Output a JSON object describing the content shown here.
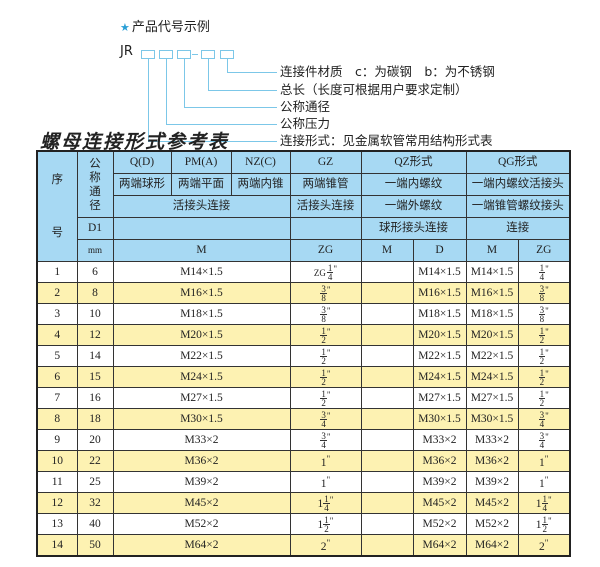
{
  "legend": {
    "title": "产品代号示例",
    "code_prefix": "JR",
    "descriptions": [
      "连接件材质　c：为碳钢　b：为不锈钢",
      "总长（长度可根据用户要求定制）",
      "公称通径",
      "公称压力",
      "连接形式：见金属软管常用结构形式表"
    ]
  },
  "table_title": "螺母连接形式参考表",
  "header": {
    "seq": "序",
    "seq2": "号",
    "nominal": "公称通径",
    "row1": [
      "Q(D)",
      "PM(A)",
      "NZ(C)",
      "GZ",
      "QZ形式",
      "QG形式"
    ],
    "row2": [
      "两端球形",
      "两端平面",
      "两端内锥",
      "两端锥管",
      "一端内螺纹",
      "一端内螺纹活接头"
    ],
    "row3": [
      "活接头连接",
      "活接头连接",
      "一端外螺纹",
      "一端锥管螺纹接头"
    ],
    "row4": [
      "D1",
      "球形接头连接",
      "连接"
    ],
    "row5": [
      "mm",
      "M",
      "ZG",
      "M",
      "D",
      "M",
      "ZG"
    ]
  },
  "rows": [
    {
      "no": "1",
      "d1": "6",
      "m": "M14×1.5",
      "zg": {
        "pre": "ZG",
        "n": "1",
        "d": "4"
      },
      "qz_d": "M14×1.5",
      "qg_m": "M14×1.5",
      "qg_zg": {
        "n": "1",
        "d": "4"
      }
    },
    {
      "no": "2",
      "d1": "8",
      "m": "M16×1.5",
      "zg": {
        "n": "3",
        "d": "8"
      },
      "qz_d": "M16×1.5",
      "qg_m": "M16×1.5",
      "qg_zg": {
        "n": "3",
        "d": "8"
      }
    },
    {
      "no": "3",
      "d1": "10",
      "m": "M18×1.5",
      "zg": {
        "n": "3",
        "d": "8"
      },
      "qz_d": "M18×1.5",
      "qg_m": "M18×1.5",
      "qg_zg": {
        "n": "3",
        "d": "8"
      }
    },
    {
      "no": "4",
      "d1": "12",
      "m": "M20×1.5",
      "zg": {
        "n": "1",
        "d": "2"
      },
      "qz_d": "M20×1.5",
      "qg_m": "M20×1.5",
      "qg_zg": {
        "n": "1",
        "d": "2"
      }
    },
    {
      "no": "5",
      "d1": "14",
      "m": "M22×1.5",
      "zg": {
        "n": "1",
        "d": "2"
      },
      "qz_d": "M22×1.5",
      "qg_m": "M22×1.5",
      "qg_zg": {
        "n": "1",
        "d": "2"
      }
    },
    {
      "no": "6",
      "d1": "15",
      "m": "M24×1.5",
      "zg": {
        "n": "1",
        "d": "2"
      },
      "qz_d": "M24×1.5",
      "qg_m": "M24×1.5",
      "qg_zg": {
        "n": "1",
        "d": "2"
      }
    },
    {
      "no": "7",
      "d1": "16",
      "m": "M27×1.5",
      "zg": {
        "n": "1",
        "d": "2"
      },
      "qz_d": "M27×1.5",
      "qg_m": "M27×1.5",
      "qg_zg": {
        "n": "1",
        "d": "2"
      }
    },
    {
      "no": "8",
      "d1": "18",
      "m": "M30×1.5",
      "zg": {
        "n": "3",
        "d": "4"
      },
      "qz_d": "M30×1.5",
      "qg_m": "M30×1.5",
      "qg_zg": {
        "n": "3",
        "d": "4"
      }
    },
    {
      "no": "9",
      "d1": "20",
      "m": "M33×2",
      "zg": {
        "n": "3",
        "d": "4"
      },
      "qz_d": "M33×2",
      "qg_m": "M33×2",
      "qg_zg": {
        "n": "3",
        "d": "4"
      }
    },
    {
      "no": "10",
      "d1": "22",
      "m": "M36×2",
      "zg": {
        "w": "1"
      },
      "qz_d": "M36×2",
      "qg_m": "M36×2",
      "qg_zg": {
        "w": "1"
      }
    },
    {
      "no": "11",
      "d1": "25",
      "m": "M39×2",
      "zg": {
        "w": "1"
      },
      "qz_d": "M39×2",
      "qg_m": "M39×2",
      "qg_zg": {
        "w": "1"
      }
    },
    {
      "no": "12",
      "d1": "32",
      "m": "M45×2",
      "zg": {
        "w": "1",
        "n": "1",
        "d": "4"
      },
      "qz_d": "M45×2",
      "qg_m": "M45×2",
      "qg_zg": {
        "w": "1",
        "n": "1",
        "d": "4"
      }
    },
    {
      "no": "13",
      "d1": "40",
      "m": "M52×2",
      "zg": {
        "w": "1",
        "n": "1",
        "d": "2"
      },
      "qz_d": "M52×2",
      "qg_m": "M52×2",
      "qg_zg": {
        "w": "1",
        "n": "1",
        "d": "2"
      }
    },
    {
      "no": "14",
      "d1": "50",
      "m": "M64×2",
      "zg": {
        "w": "2"
      },
      "qz_d": "M64×2",
      "qg_m": "M64×2",
      "qg_zg": {
        "w": "2"
      }
    }
  ],
  "colors": {
    "header_bg": "#a7d9f3",
    "stripe_bg": "#fdf2b2",
    "line": "#7cc7e8"
  }
}
